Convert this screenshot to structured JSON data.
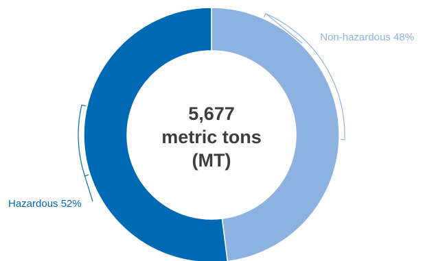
{
  "chart_data": {
    "type": "pie",
    "variant": "donut",
    "center_text": {
      "line1": "5,677",
      "line2": "metric tons",
      "line3": "(MT)"
    },
    "total": 5677,
    "unit": "metric tons (MT)",
    "slices": [
      {
        "label": "Non-hazardous 48%",
        "category": "Non-hazardous",
        "percent": 48,
        "color": "#8eb2df"
      },
      {
        "label": "Hazardous 52%",
        "category": "Hazardous",
        "percent": 52,
        "color": "#0069b4"
      }
    ],
    "legend": "none",
    "label_placement": "outside with bracket leaders"
  }
}
